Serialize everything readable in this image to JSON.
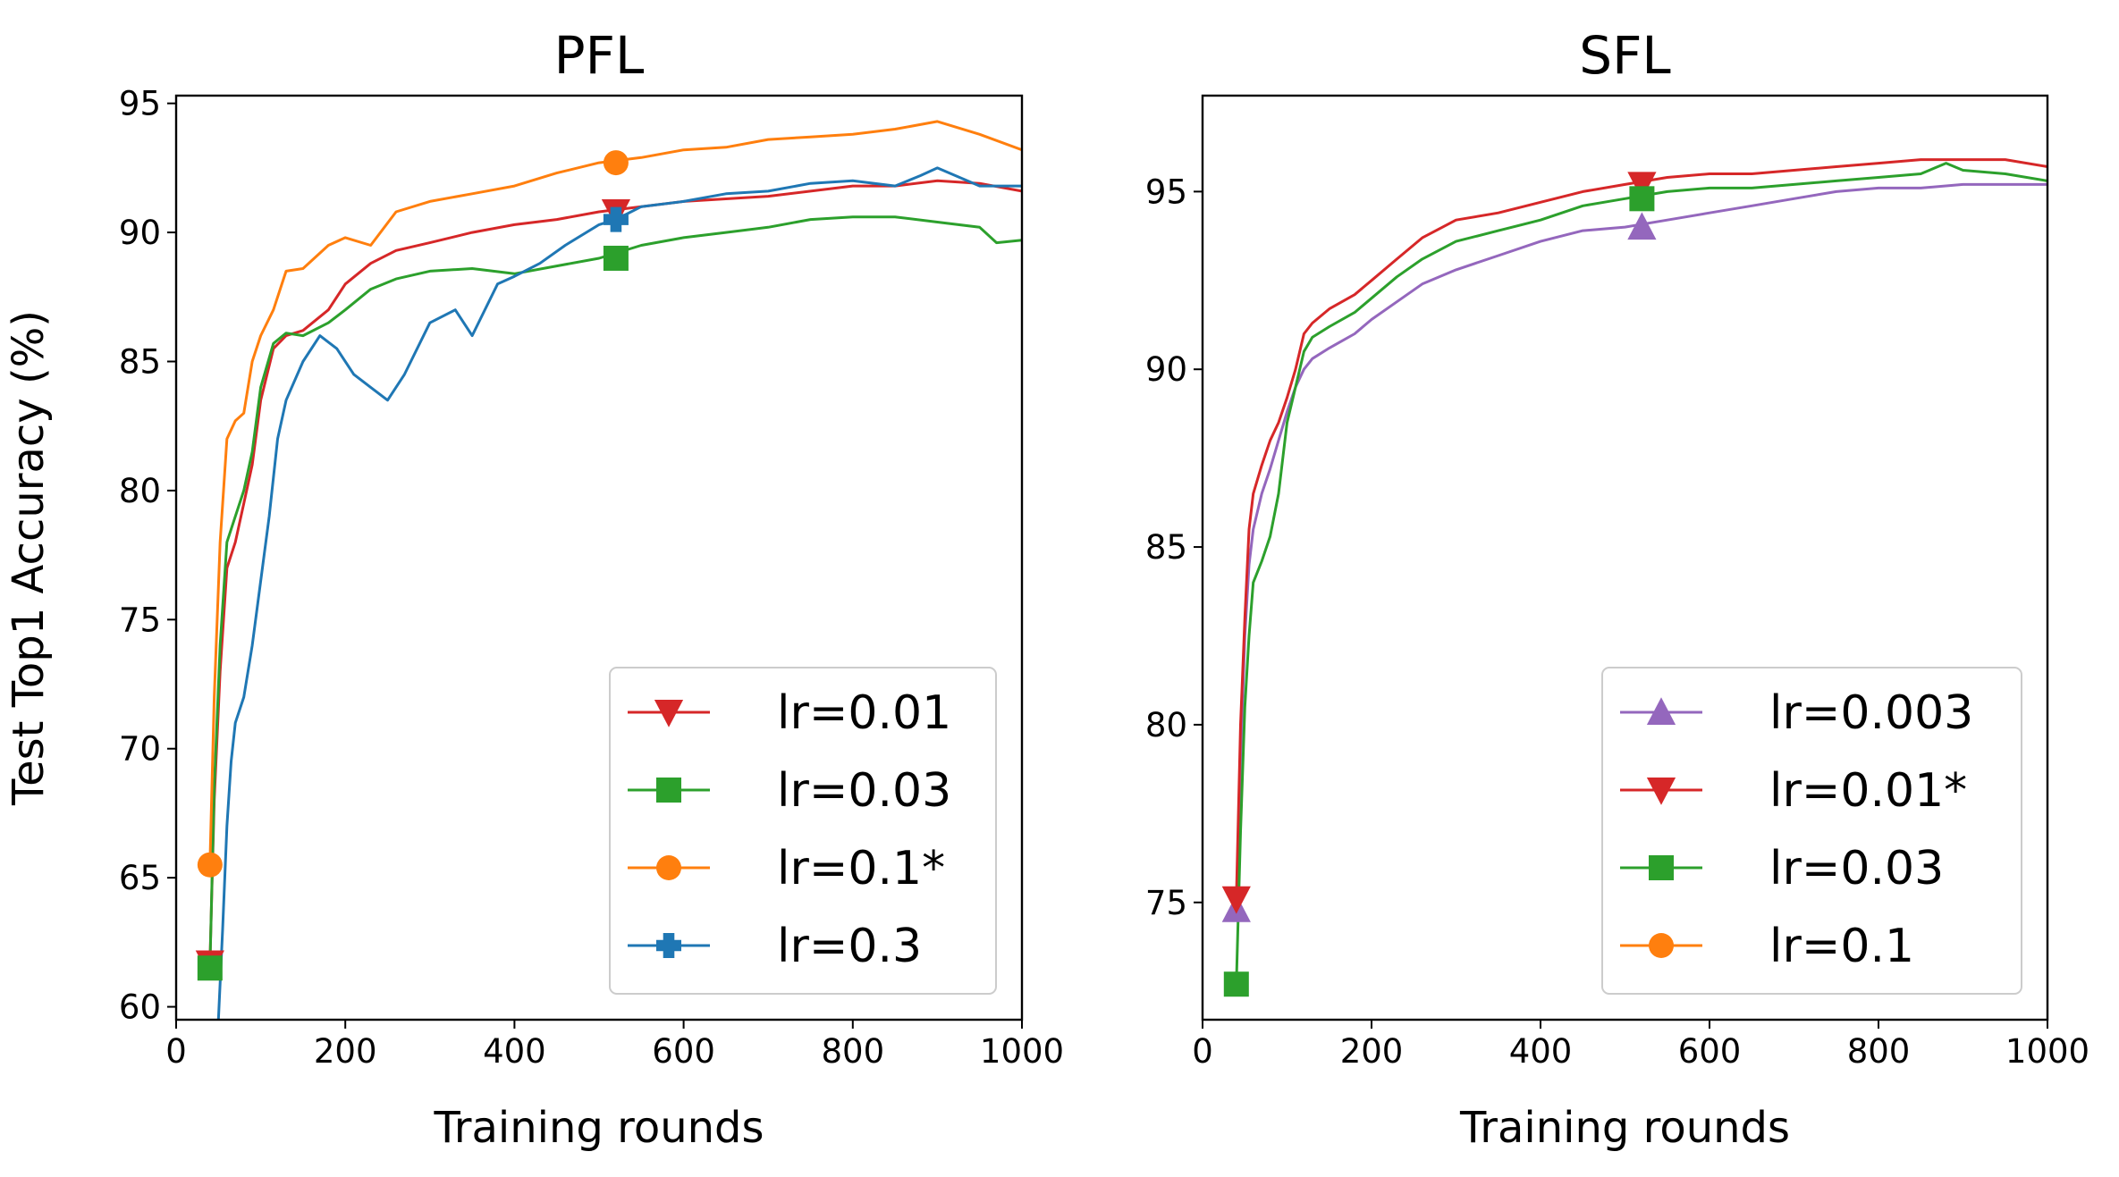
{
  "chart_data": [
    {
      "type": "line",
      "title": "PFL",
      "xlabel": "Training rounds",
      "ylabel": "Test Top1 Accuracy (%)",
      "xlim": [
        0,
        1000
      ],
      "ylim": [
        59.5,
        95.3
      ],
      "xticks": [
        "0",
        "200",
        "400",
        "600",
        "800",
        "1000"
      ],
      "yticks": [
        "60",
        "65",
        "70",
        "75",
        "80",
        "85",
        "90",
        "95"
      ],
      "legend_position": "lower-right",
      "series": [
        {
          "name": "lr=0.01",
          "color": "#d62728",
          "marker": "triangle-down",
          "marker_points": [
            [
              40,
              61.7
            ],
            [
              520,
              90.8
            ]
          ],
          "x": [
            40,
            45,
            52,
            60,
            70,
            80,
            90,
            100,
            115,
            130,
            150,
            180,
            200,
            230,
            260,
            300,
            350,
            400,
            450,
            500,
            550,
            600,
            650,
            700,
            750,
            800,
            850,
            900,
            950,
            1000
          ],
          "y": [
            61.7,
            68,
            73,
            77,
            78,
            79.5,
            81,
            83.5,
            85.5,
            86,
            86.2,
            87,
            88,
            88.8,
            89.3,
            89.6,
            90,
            90.3,
            90.5,
            90.8,
            91,
            91.2,
            91.3,
            91.4,
            91.6,
            91.8,
            91.8,
            92,
            91.9,
            91.6
          ]
        },
        {
          "name": "lr=0.03",
          "color": "#2ca02c",
          "marker": "square",
          "marker_points": [
            [
              40,
              61.5
            ],
            [
              520,
              89.0
            ]
          ],
          "x": [
            40,
            45,
            52,
            60,
            70,
            80,
            90,
            100,
            115,
            130,
            150,
            180,
            200,
            230,
            260,
            300,
            350,
            400,
            450,
            500,
            550,
            600,
            650,
            700,
            750,
            800,
            850,
            900,
            950,
            970,
            1000
          ],
          "y": [
            61.5,
            68.5,
            74,
            78,
            79,
            80,
            81.5,
            84,
            85.7,
            86.1,
            86,
            86.5,
            87,
            87.8,
            88.2,
            88.5,
            88.6,
            88.4,
            88.7,
            89.0,
            89.5,
            89.8,
            90,
            90.2,
            90.5,
            90.6,
            90.6,
            90.4,
            90.2,
            89.6,
            89.7
          ]
        },
        {
          "name": "lr=0.1*",
          "color": "#ff7f0e",
          "marker": "circle",
          "marker_points": [
            [
              40,
              65.5
            ],
            [
              520,
              92.7
            ]
          ],
          "x": [
            40,
            45,
            52,
            60,
            70,
            80,
            90,
            100,
            115,
            130,
            150,
            180,
            200,
            230,
            260,
            300,
            350,
            400,
            450,
            500,
            550,
            600,
            650,
            700,
            750,
            800,
            850,
            900,
            950,
            1000
          ],
          "y": [
            65.5,
            72,
            78,
            82,
            82.7,
            83,
            85,
            86,
            87,
            88.5,
            88.6,
            89.5,
            89.8,
            89.5,
            90.8,
            91.2,
            91.5,
            91.8,
            92.3,
            92.7,
            92.9,
            93.2,
            93.3,
            93.6,
            93.7,
            93.8,
            94,
            94.3,
            93.8,
            93.2
          ]
        },
        {
          "name": "lr=0.3",
          "color": "#1f77b4",
          "marker": "plus",
          "marker_points": [
            [
              520,
              90.5
            ]
          ],
          "x": [
            50,
            55,
            60,
            65,
            70,
            80,
            90,
            100,
            110,
            120,
            130,
            150,
            170,
            190,
            210,
            230,
            250,
            270,
            300,
            330,
            350,
            380,
            400,
            430,
            460,
            500,
            520,
            550,
            600,
            650,
            700,
            750,
            800,
            850,
            880,
            900,
            950,
            1000
          ],
          "y": [
            59.5,
            63,
            67,
            69.5,
            71,
            72,
            74,
            76.5,
            79,
            82,
            83.5,
            85,
            86,
            85.5,
            84.5,
            84,
            83.5,
            84.5,
            86.5,
            87,
            86,
            88,
            88.3,
            88.8,
            89.5,
            90.3,
            90.5,
            91,
            91.2,
            91.5,
            91.6,
            91.9,
            92,
            91.8,
            92.2,
            92.5,
            91.8,
            91.8
          ]
        }
      ]
    },
    {
      "type": "line",
      "title": "SFL",
      "xlabel": "Training rounds",
      "ylabel": "",
      "xlim": [
        0,
        1000
      ],
      "ylim": [
        71.7,
        97.7
      ],
      "xticks": [
        "0",
        "200",
        "400",
        "600",
        "800",
        "1000"
      ],
      "yticks": [
        "75",
        "80",
        "85",
        "90",
        "95"
      ],
      "legend_position": "lower-right",
      "series": [
        {
          "name": "lr=0.003",
          "color": "#9467bd",
          "marker": "triangle-up",
          "marker_points": [
            [
              40,
              74.8
            ],
            [
              520,
              94.0
            ]
          ],
          "x": [
            40,
            45,
            50,
            55,
            60,
            70,
            80,
            90,
            100,
            110,
            120,
            130,
            150,
            180,
            200,
            230,
            260,
            300,
            350,
            400,
            450,
            500,
            550,
            600,
            650,
            700,
            750,
            800,
            850,
            900,
            950,
            1000
          ],
          "y": [
            74.8,
            79,
            82.5,
            84.5,
            85.5,
            86.5,
            87.2,
            88,
            88.8,
            89.5,
            90,
            90.3,
            90.6,
            91,
            91.4,
            91.9,
            92.4,
            92.8,
            93.2,
            93.6,
            93.9,
            94.0,
            94.2,
            94.4,
            94.6,
            94.8,
            95,
            95.1,
            95.1,
            95.2,
            95.2,
            95.2
          ]
        },
        {
          "name": "lr=0.01*",
          "color": "#d62728",
          "marker": "triangle-down",
          "marker_points": [
            [
              40,
              75.1
            ],
            [
              520,
              95.2
            ]
          ],
          "x": [
            40,
            45,
            50,
            55,
            60,
            70,
            80,
            90,
            100,
            110,
            120,
            130,
            150,
            180,
            200,
            230,
            260,
            300,
            350,
            400,
            450,
            500,
            550,
            600,
            650,
            700,
            750,
            800,
            850,
            900,
            950,
            1000
          ],
          "y": [
            75.1,
            80,
            83,
            85.5,
            86.5,
            87.3,
            88,
            88.5,
            89.2,
            90,
            91,
            91.3,
            91.7,
            92.1,
            92.5,
            93.1,
            93.7,
            94.2,
            94.4,
            94.7,
            95.0,
            95.2,
            95.4,
            95.5,
            95.5,
            95.6,
            95.7,
            95.8,
            95.9,
            95.9,
            95.9,
            95.7
          ]
        },
        {
          "name": "lr=0.03",
          "color": "#2ca02c",
          "marker": "square",
          "marker_points": [
            [
              40,
              72.7
            ],
            [
              520,
              94.8
            ]
          ],
          "x": [
            40,
            45,
            50,
            55,
            60,
            70,
            80,
            90,
            100,
            110,
            120,
            130,
            150,
            180,
            200,
            230,
            260,
            300,
            350,
            400,
            450,
            500,
            550,
            600,
            650,
            700,
            750,
            800,
            850,
            880,
            900,
            950,
            1000
          ],
          "y": [
            72.7,
            77,
            80.5,
            82.5,
            84,
            84.6,
            85.3,
            86.5,
            88.5,
            89.5,
            90.5,
            90.9,
            91.2,
            91.6,
            92,
            92.6,
            93.1,
            93.6,
            93.9,
            94.2,
            94.6,
            94.8,
            95,
            95.1,
            95.1,
            95.2,
            95.3,
            95.4,
            95.5,
            95.8,
            95.6,
            95.5,
            95.3
          ]
        },
        {
          "name": "lr=0.1",
          "color": "#ff7f0e",
          "marker": "circle",
          "marker_points": [],
          "x": [],
          "y": []
        }
      ]
    }
  ]
}
